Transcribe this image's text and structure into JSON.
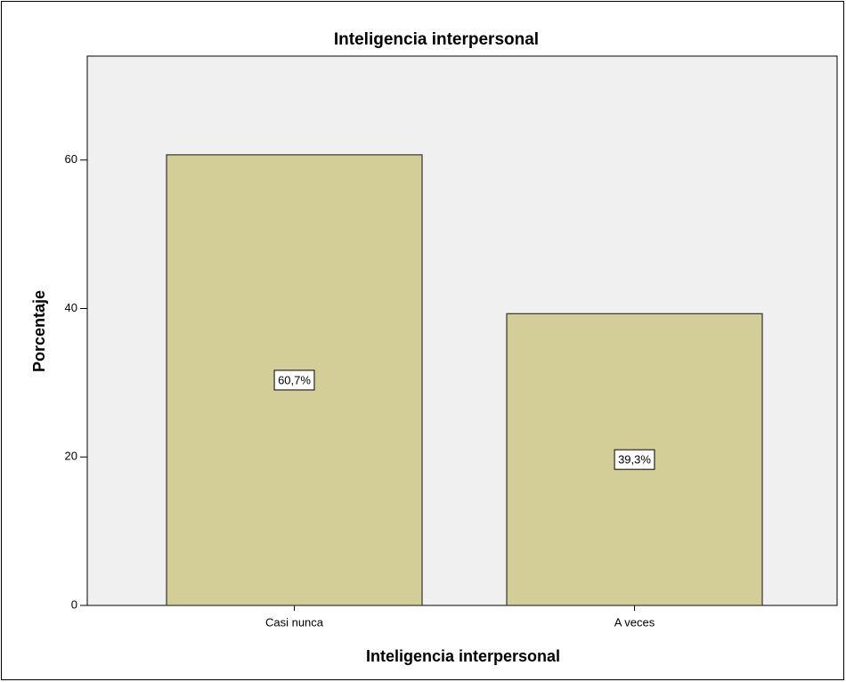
{
  "chart_data": {
    "type": "bar",
    "title": "Inteligencia interpersonal",
    "x_label": "Inteligencia interpersonal",
    "y_label": "Porcentaje",
    "categories": [
      "Casi nunca",
      "A veces"
    ],
    "values": [
      60.7,
      39.3
    ],
    "value_labels": [
      "60,7%",
      "39,3%"
    ],
    "color": "#d3ce97",
    "ylim": [
      0,
      74
    ],
    "yticks": [
      0,
      20,
      40,
      60
    ],
    "grid": false
  }
}
